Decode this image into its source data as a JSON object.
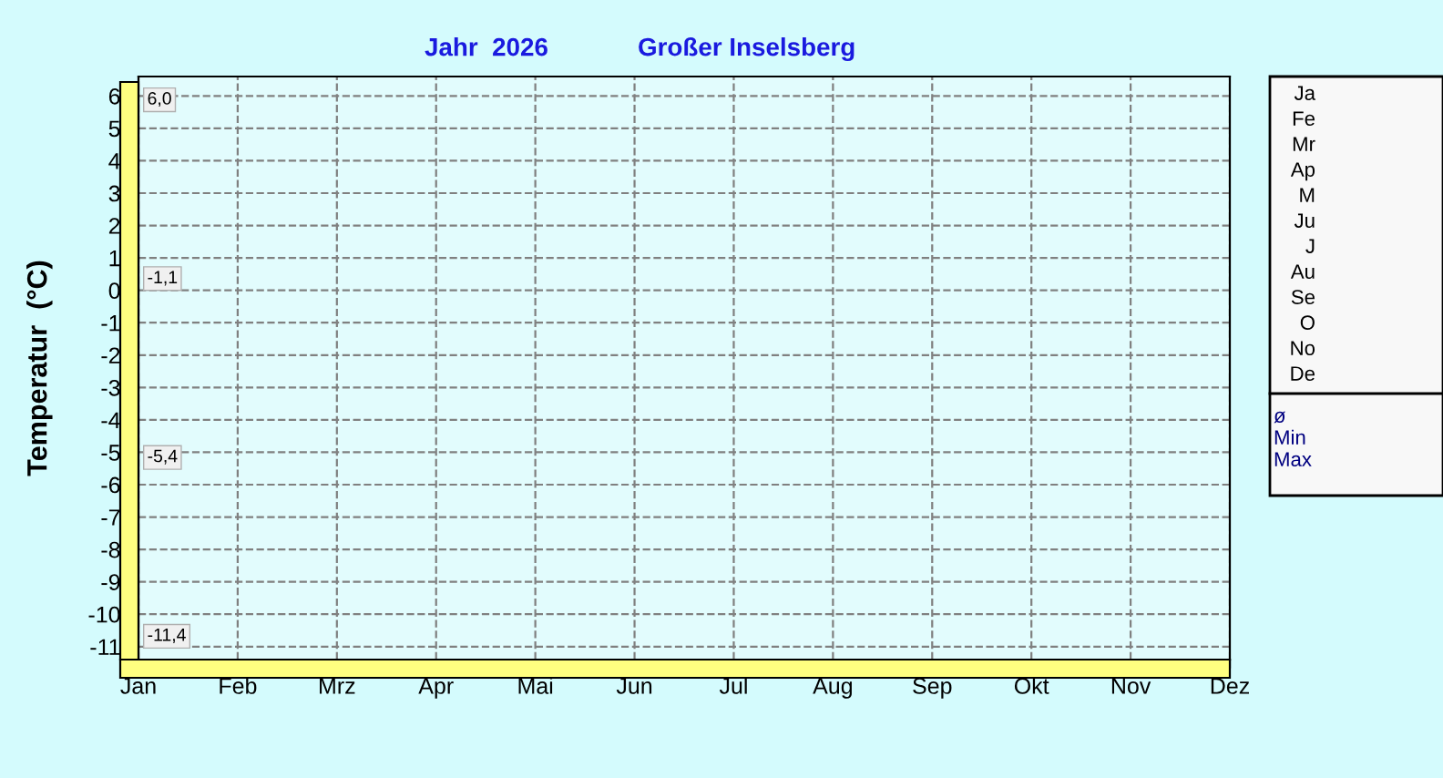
{
  "chart_data": {
    "type": "line",
    "title": "Jahr  2026",
    "subtitle": "Großer Inselsberg",
    "ylabel": "Temperatur  (°C)",
    "categories": [
      "Jan",
      "Feb",
      "Mrz",
      "Apr",
      "Mai",
      "Jun",
      "Jul",
      "Aug",
      "Sep",
      "Okt",
      "Nov",
      "Dez"
    ],
    "ylim": [
      -11.4,
      6.6
    ],
    "yticks": [
      -11,
      -10,
      -9,
      -8,
      -7,
      -6,
      -5,
      -4,
      -3,
      -2,
      -1,
      0,
      1,
      2,
      3,
      4,
      5,
      6
    ],
    "grid": true,
    "line_style": "dashed",
    "annotations": [
      "6,0",
      "-1,1",
      "-5,4",
      "-11,4",
      "Ja",
      "Fe",
      "Mr",
      "Ap",
      "M",
      "Ju",
      "J",
      "Au",
      "Se",
      "O",
      "No",
      "De",
      "ø",
      "Min",
      "Max"
    ]
  }
}
